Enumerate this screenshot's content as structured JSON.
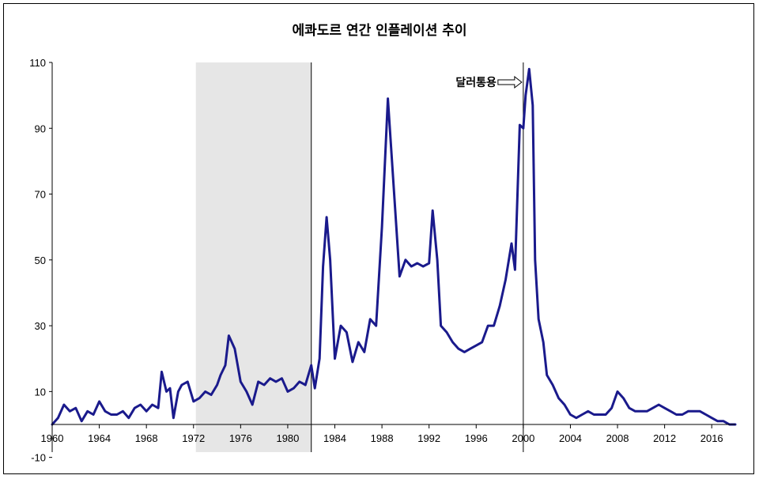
{
  "chart_data": {
    "type": "line",
    "title": "에콰도르 연간 인플레이션 추이",
    "xlabel": "",
    "ylabel": "",
    "xlim": [
      1960,
      2018
    ],
    "ylim": [
      -10,
      110
    ],
    "y_ticks": [
      "-10",
      "10",
      "30",
      "50",
      "70",
      "90",
      "110"
    ],
    "x_ticks": [
      "1960",
      "1964",
      "1968",
      "1972",
      "1976",
      "1980",
      "1984",
      "1988",
      "1992",
      "1996",
      "2000",
      "2004",
      "2008",
      "2012",
      "2016"
    ],
    "grid": false,
    "line_color": "#1a1a8c",
    "shaded_region": {
      "x_start": 1972.2,
      "x_end": 1982,
      "color": "#e6e6e6"
    },
    "vertical_lines": [
      1982,
      2000
    ],
    "annotation": {
      "text": "달러통용",
      "x": 2000,
      "y": 104
    },
    "series": [
      {
        "x": [
          1960,
          1960.5,
          1961,
          1961.5,
          1962,
          1962.5,
          1963,
          1963.5,
          1964,
          1964.5,
          1965,
          1965.5,
          1966,
          1966.5,
          1967,
          1967.5,
          1968,
          1968.5,
          1969,
          1969.3,
          1969.7,
          1970,
          1970.3,
          1970.7,
          1971,
          1971.5,
          1972,
          1972.5,
          1973,
          1973.5,
          1974,
          1974.3,
          1974.7,
          1975,
          1975.5,
          1976,
          1976.5,
          1977,
          1977.5,
          1978,
          1978.5,
          1979,
          1979.5,
          1980,
          1980.5,
          1981,
          1981.5,
          1982,
          1982.3,
          1982.7,
          1983,
          1983.3,
          1983.6,
          1984,
          1984.5,
          1985,
          1985.5,
          1986,
          1986.5,
          1987,
          1987.5,
          1988,
          1988.5,
          1989,
          1989.5,
          1990,
          1990.5,
          1991,
          1991.5,
          1992,
          1992.3,
          1992.7,
          1993,
          1993.5,
          1994,
          1994.5,
          1995,
          1995.5,
          1996,
          1996.5,
          1997,
          1997.5,
          1998,
          1998.5,
          1999,
          1999.3,
          1999.7,
          2000,
          2000.2,
          2000.5,
          2000.8,
          2001,
          2001.3,
          2001.7,
          2002,
          2002.5,
          2003,
          2003.5,
          2004,
          2004.5,
          2005,
          2005.5,
          2006,
          2006.5,
          2007,
          2007.5,
          2008,
          2008.5,
          2009,
          2009.5,
          2010,
          2010.5,
          2011,
          2011.5,
          2012,
          2012.5,
          2013,
          2013.5,
          2014,
          2014.5,
          2015,
          2015.5,
          2016,
          2016.5,
          2017,
          2017.5,
          2018
        ],
        "values": [
          0,
          2,
          6,
          4,
          5,
          1,
          4,
          3,
          7,
          4,
          3,
          3,
          4,
          2,
          5,
          6,
          4,
          6,
          5,
          16,
          10,
          11,
          2,
          10,
          12,
          13,
          7,
          8,
          10,
          9,
          12,
          15,
          18,
          27,
          23,
          13,
          10,
          6,
          13,
          12,
          14,
          13,
          14,
          10,
          11,
          13,
          12,
          18,
          11,
          20,
          48,
          63,
          50,
          20,
          30,
          28,
          19,
          25,
          22,
          32,
          30,
          60,
          99,
          72,
          45,
          50,
          48,
          49,
          48,
          49,
          65,
          50,
          30,
          28,
          25,
          23,
          22,
          23,
          24,
          25,
          30,
          30,
          36,
          44,
          55,
          47,
          91,
          90,
          100,
          108,
          97,
          50,
          32,
          25,
          15,
          12,
          8,
          6,
          3,
          2,
          3,
          4,
          3,
          3,
          3,
          5,
          10,
          8,
          5,
          4,
          4,
          4,
          5,
          6,
          5,
          4,
          3,
          3,
          4,
          4,
          4,
          3,
          2,
          1,
          1,
          0,
          0
        ]
      }
    ]
  }
}
